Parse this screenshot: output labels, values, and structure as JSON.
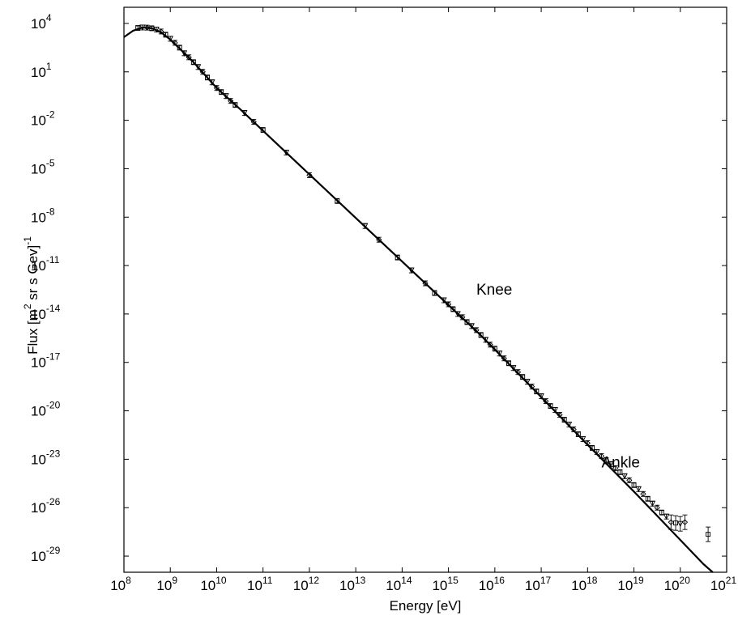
{
  "chart_data": {
    "type": "line",
    "xlabel": "Energy [eV]",
    "ylabel": {
      "main": "Flux [m",
      "sup": "2",
      "rest": " sr s Gev]",
      "sup2": "-1"
    },
    "x_scale": "log",
    "y_scale": "log",
    "xlim_exp": [
      8,
      21
    ],
    "ylim_exp": [
      -30,
      5
    ],
    "x_ticks": [
      {
        "base": "10",
        "exp": "8"
      },
      {
        "base": "10",
        "exp": "9"
      },
      {
        "base": "10",
        "exp": "10"
      },
      {
        "base": "10",
        "exp": "11"
      },
      {
        "base": "10",
        "exp": "12"
      },
      {
        "base": "10",
        "exp": "13"
      },
      {
        "base": "10",
        "exp": "14"
      },
      {
        "base": "10",
        "exp": "15"
      },
      {
        "base": "10",
        "exp": "16"
      },
      {
        "base": "10",
        "exp": "17"
      },
      {
        "base": "10",
        "exp": "18"
      },
      {
        "base": "10",
        "exp": "19"
      },
      {
        "base": "10",
        "exp": "20"
      },
      {
        "base": "10",
        "exp": "21"
      }
    ],
    "y_ticks": [
      {
        "base": "10",
        "exp": "4"
      },
      {
        "base": "10",
        "exp": "1"
      },
      {
        "base": "10",
        "exp": "-2"
      },
      {
        "base": "10",
        "exp": "-5"
      },
      {
        "base": "10",
        "exp": "-8"
      },
      {
        "base": "10",
        "exp": "-11"
      },
      {
        "base": "10",
        "exp": "-14"
      },
      {
        "base": "10",
        "exp": "-17"
      },
      {
        "base": "10",
        "exp": "-20"
      },
      {
        "base": "10",
        "exp": "-23"
      },
      {
        "base": "10",
        "exp": "-26"
      },
      {
        "base": "10",
        "exp": "-29"
      }
    ],
    "annotations": [
      {
        "text": "Knee",
        "log_x": 15.6,
        "log_y": -12.8
      },
      {
        "text": "Ankle",
        "log_x": 18.3,
        "log_y": -23.5
      }
    ],
    "fit_curve_log": [
      [
        8.0,
        3.15
      ],
      [
        8.2,
        3.55
      ],
      [
        8.4,
        3.75
      ],
      [
        8.6,
        3.7
      ],
      [
        8.8,
        3.45
      ],
      [
        9.0,
        3.0
      ],
      [
        9.2,
        2.45
      ],
      [
        9.5,
        1.6
      ],
      [
        10.0,
        0.0
      ],
      [
        10.5,
        -1.3
      ],
      [
        11.0,
        -2.65
      ],
      [
        12.0,
        -5.35
      ],
      [
        13.0,
        -8.05
      ],
      [
        14.0,
        -10.75
      ],
      [
        15.0,
        -13.45
      ],
      [
        15.6,
        -15.05
      ],
      [
        16.0,
        -16.2
      ],
      [
        17.0,
        -19.15
      ],
      [
        18.0,
        -22.1
      ],
      [
        18.5,
        -23.55
      ],
      [
        19.0,
        -25.0
      ],
      [
        19.5,
        -26.5
      ],
      [
        20.0,
        -28.0
      ],
      [
        20.5,
        -29.5
      ],
      [
        20.7,
        -30.0
      ]
    ],
    "data_points_log": [
      [
        8.3,
        3.72
      ],
      [
        8.4,
        3.75
      ],
      [
        8.5,
        3.74
      ],
      [
        8.6,
        3.7
      ],
      [
        8.7,
        3.62
      ],
      [
        8.8,
        3.5
      ],
      [
        8.9,
        3.3
      ],
      [
        9.0,
        3.05
      ],
      [
        9.1,
        2.8
      ],
      [
        9.2,
        2.5
      ],
      [
        9.3,
        2.15
      ],
      [
        9.4,
        1.9
      ],
      [
        9.5,
        1.6
      ],
      [
        9.6,
        1.3
      ],
      [
        9.7,
        1.0
      ],
      [
        9.8,
        0.65
      ],
      [
        9.9,
        0.35
      ],
      [
        10.0,
        0.0
      ],
      [
        10.1,
        -0.25
      ],
      [
        10.2,
        -0.5
      ],
      [
        10.3,
        -0.8
      ],
      [
        10.4,
        -1.05
      ],
      [
        10.6,
        -1.55
      ],
      [
        10.8,
        -2.1
      ],
      [
        11.0,
        -2.6
      ],
      [
        11.5,
        -4.0
      ],
      [
        12.0,
        -5.4
      ],
      [
        12.6,
        -7.0
      ],
      [
        13.2,
        -8.55
      ],
      [
        13.5,
        -9.4
      ],
      [
        13.9,
        -10.5
      ],
      [
        14.2,
        -11.3
      ],
      [
        14.5,
        -12.1
      ],
      [
        14.7,
        -12.7
      ],
      [
        14.9,
        -13.15
      ],
      [
        15.0,
        -13.4
      ],
      [
        15.1,
        -13.7
      ],
      [
        15.2,
        -14.0
      ],
      [
        15.3,
        -14.2
      ],
      [
        15.4,
        -14.5
      ],
      [
        15.5,
        -14.75
      ],
      [
        15.6,
        -15.0
      ],
      [
        15.7,
        -15.3
      ],
      [
        15.8,
        -15.6
      ],
      [
        15.9,
        -15.9
      ],
      [
        16.0,
        -16.15
      ],
      [
        16.1,
        -16.45
      ],
      [
        16.2,
        -16.75
      ],
      [
        16.3,
        -17.05
      ],
      [
        16.4,
        -17.35
      ],
      [
        16.5,
        -17.6
      ],
      [
        16.6,
        -17.9
      ],
      [
        16.7,
        -18.2
      ],
      [
        16.8,
        -18.5
      ],
      [
        16.9,
        -18.8
      ],
      [
        17.0,
        -19.1
      ],
      [
        17.1,
        -19.4
      ],
      [
        17.2,
        -19.7
      ],
      [
        17.3,
        -19.95
      ],
      [
        17.4,
        -20.25
      ],
      [
        17.5,
        -20.55
      ],
      [
        17.6,
        -20.85
      ],
      [
        17.7,
        -21.15
      ],
      [
        17.8,
        -21.45
      ],
      [
        17.9,
        -21.75
      ],
      [
        18.0,
        -22.0
      ],
      [
        18.1,
        -22.3
      ],
      [
        18.2,
        -22.55
      ],
      [
        18.3,
        -22.8
      ],
      [
        18.4,
        -23.05
      ],
      [
        18.5,
        -23.3
      ],
      [
        18.6,
        -23.55
      ],
      [
        18.7,
        -23.8
      ],
      [
        18.8,
        -24.05
      ],
      [
        18.9,
        -24.3
      ],
      [
        19.0,
        -24.6
      ],
      [
        19.1,
        -24.85
      ],
      [
        19.2,
        -25.15
      ],
      [
        19.3,
        -25.45
      ],
      [
        19.4,
        -25.75
      ],
      [
        19.5,
        -26.0
      ],
      [
        19.6,
        -26.3
      ],
      [
        19.7,
        -26.55
      ],
      [
        19.8,
        -26.9
      ],
      [
        19.9,
        -26.95
      ],
      [
        20.0,
        -27.0
      ],
      [
        20.1,
        -26.9
      ],
      [
        20.6,
        -27.65
      ]
    ]
  }
}
